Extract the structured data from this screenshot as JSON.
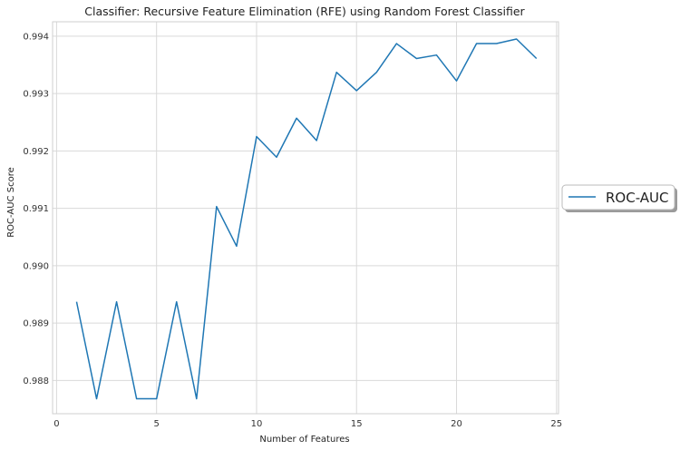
{
  "chart_data": {
    "type": "line",
    "title": "Classifier: Recursive Feature Elimination (RFE) using Random Forest Classifier",
    "xlabel": "Number of Features",
    "ylabel": "ROC-AUC Score",
    "xlim": [
      -0.2,
      25.1
    ],
    "ylim": [
      0.98742,
      0.99425
    ],
    "xticks": [
      0,
      5,
      10,
      15,
      20,
      25
    ],
    "xtick_labels": [
      "0",
      "5",
      "10",
      "15",
      "20",
      "25"
    ],
    "yticks": [
      0.988,
      0.989,
      0.99,
      0.991,
      0.992,
      0.993,
      0.994
    ],
    "ytick_labels": [
      "0.988",
      "0.989",
      "0.990",
      "0.991",
      "0.992",
      "0.993",
      "0.994"
    ],
    "grid": true,
    "legend_position": "center-right-outside",
    "series": [
      {
        "name": "ROC-AUC",
        "color": "#1f77b4",
        "x": [
          1,
          2,
          3,
          4,
          5,
          6,
          7,
          8,
          9,
          10,
          11,
          12,
          13,
          14,
          15,
          16,
          17,
          18,
          19,
          20,
          21,
          22,
          23,
          24
        ],
        "y": [
          0.98937,
          0.98768,
          0.98937,
          0.98768,
          0.98768,
          0.98937,
          0.98768,
          0.99103,
          0.99034,
          0.99225,
          0.99189,
          0.99257,
          0.99218,
          0.99337,
          0.99305,
          0.99337,
          0.99387,
          0.99361,
          0.99367,
          0.99322,
          0.99387,
          0.99387,
          0.99395,
          0.99361
        ]
      }
    ]
  }
}
